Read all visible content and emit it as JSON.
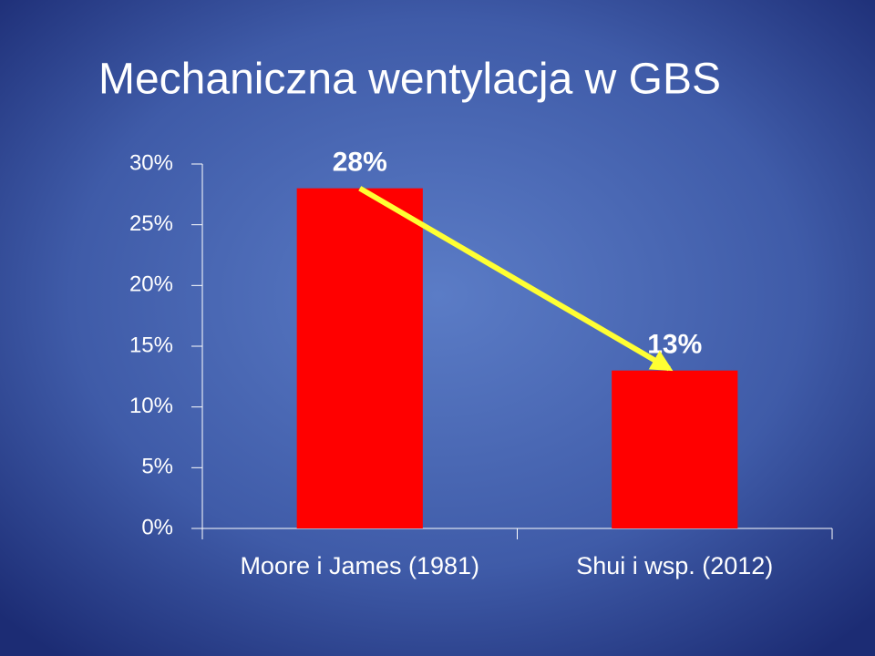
{
  "chart_data": {
    "type": "bar",
    "title": "Mechaniczna wentylacja w GBS",
    "categories": [
      "Moore i James (1981)",
      "Shui i wsp. (2012)"
    ],
    "values": [
      28,
      13
    ],
    "value_labels": [
      "28%",
      "13%"
    ],
    "color": "#ff0000",
    "ylim": [
      0,
      30
    ],
    "yticks": [
      {
        "value": 0,
        "label": "0%"
      },
      {
        "value": 5,
        "label": "5%"
      },
      {
        "value": 10,
        "label": "10%"
      },
      {
        "value": 15,
        "label": "15%"
      },
      {
        "value": 20,
        "label": "20%"
      },
      {
        "value": 25,
        "label": "25%"
      },
      {
        "value": 30,
        "label": "30%"
      }
    ]
  }
}
